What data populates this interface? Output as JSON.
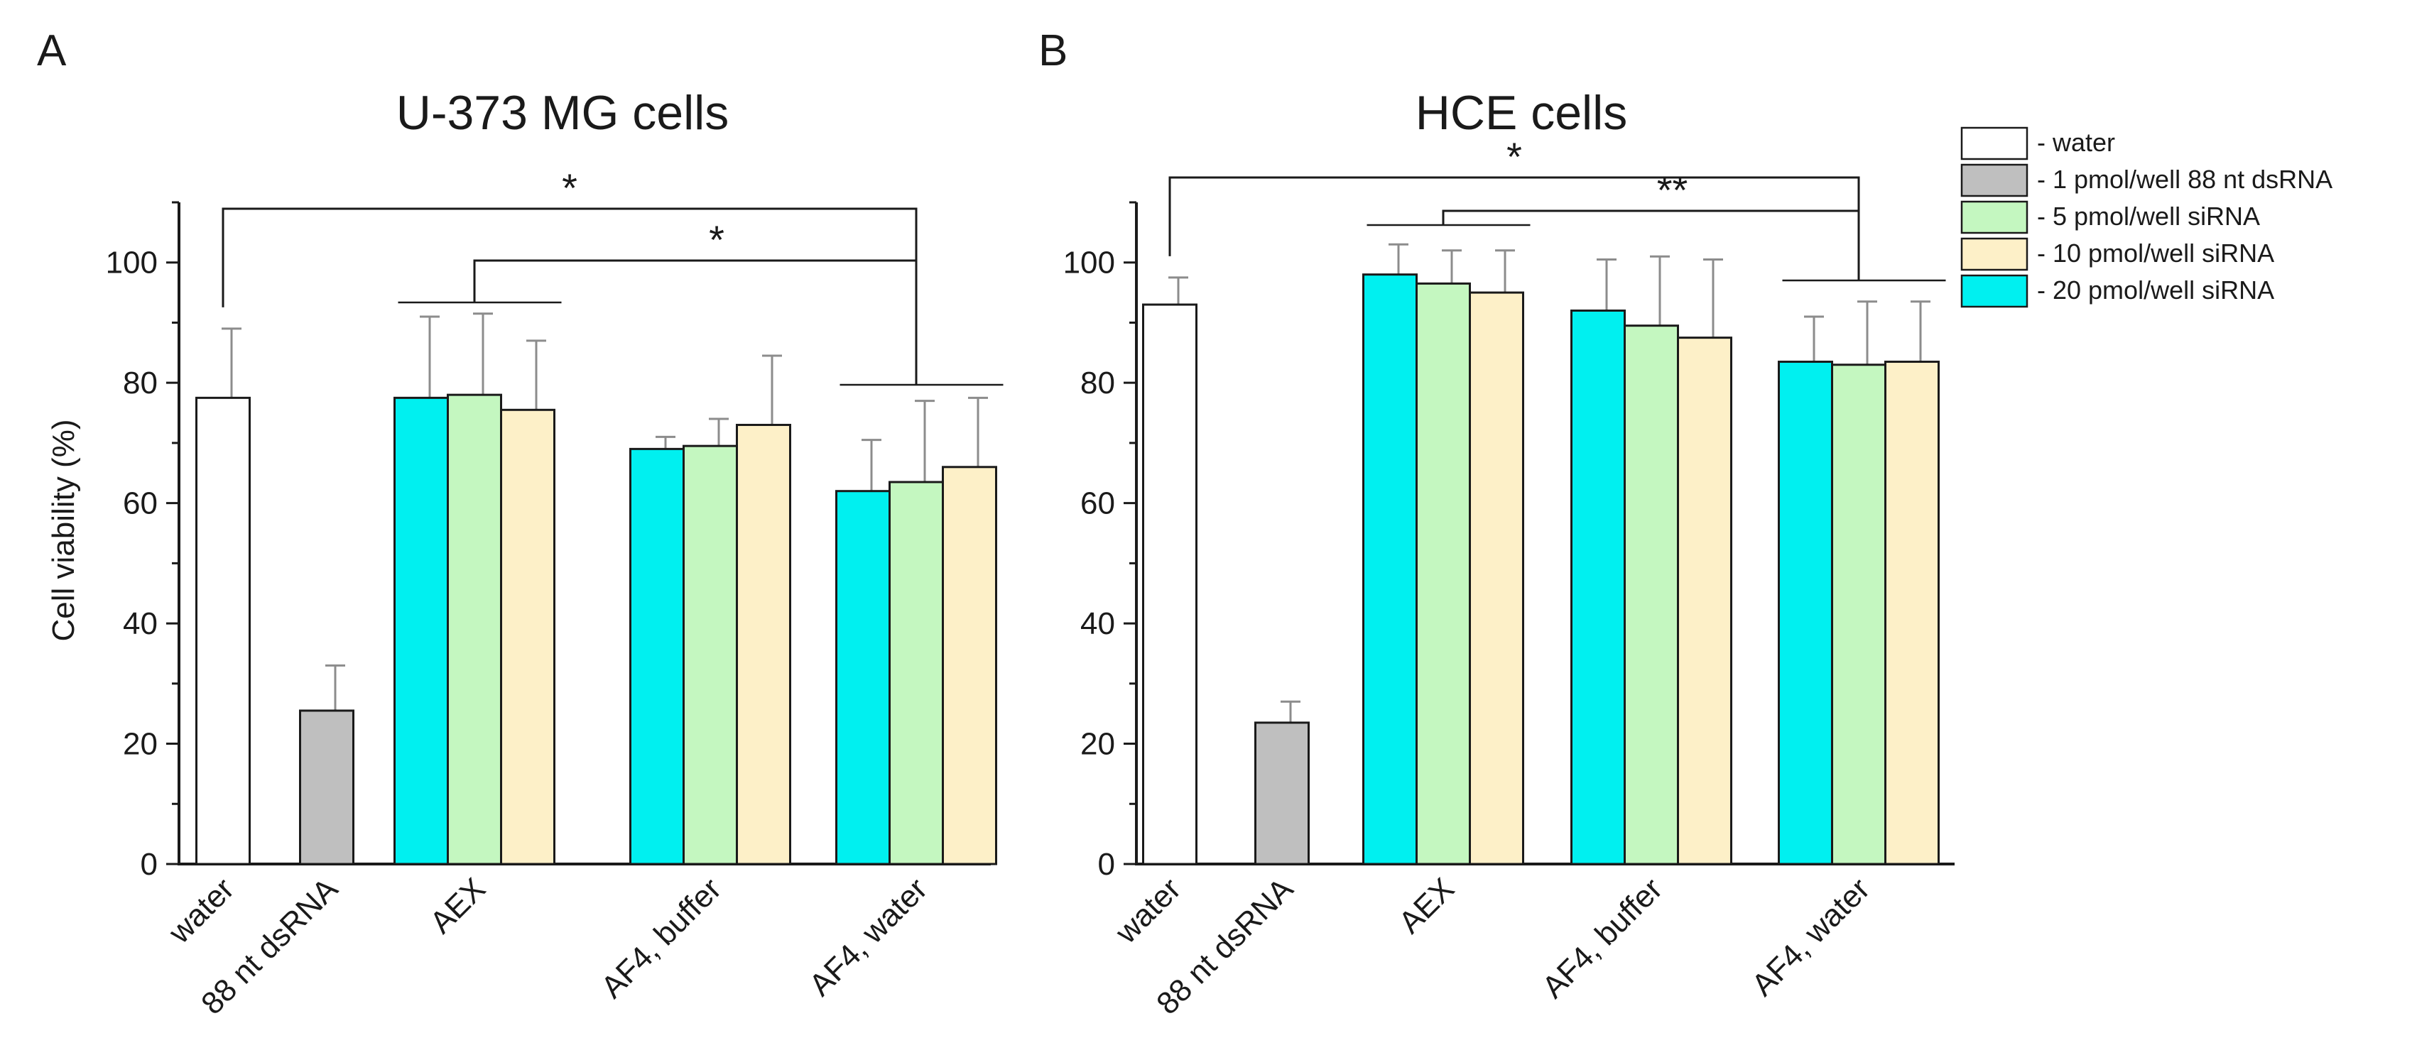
{
  "legend": [
    {
      "key": "water",
      "label": "- water",
      "color": "#ffffff"
    },
    {
      "key": "dsRNA",
      "label": "- 1 pmol/well 88 nt dsRNA",
      "color": "#bfbfbf"
    },
    {
      "key": "p5",
      "label": "- 5 pmol/well siRNA",
      "color": "#c4f7c0"
    },
    {
      "key": "p10",
      "label": "- 10 pmol/well siRNA",
      "color": "#fdf0c8"
    },
    {
      "key": "p20",
      "label": "- 20 pmol/well siRNA",
      "color": "#00f0f0"
    }
  ],
  "colors": {
    "axis": "#1a1a1a",
    "bar_stroke": "#1a1a1a",
    "error": "#8c8c8c",
    "bracket": "#1a1a1a"
  },
  "chart_data": [
    {
      "panel": "A",
      "type": "bar",
      "title": "U-373 MG cells",
      "xlabel": "",
      "ylabel": "Cell viability (%)",
      "ylim": [
        0,
        110
      ],
      "yticks": [
        0,
        20,
        40,
        60,
        80,
        100
      ],
      "categories": [
        "water",
        "88 nt dsRNA",
        "AEX",
        "AF4, buffer",
        "AF4, water"
      ],
      "groups": [
        {
          "category": "water",
          "bars": [
            {
              "series": "water",
              "value": 77.5,
              "error": 11.5
            }
          ]
        },
        {
          "category": "88 nt dsRNA",
          "bars": [
            {
              "series": "dsRNA",
              "value": 25.5,
              "error": 7.5
            }
          ]
        },
        {
          "category": "AEX",
          "bars": [
            {
              "series": "p20",
              "value": 77.5,
              "error": 13.5
            },
            {
              "series": "p5",
              "value": 78.0,
              "error": 13.5
            },
            {
              "series": "p10",
              "value": 75.5,
              "error": 11.5
            }
          ]
        },
        {
          "category": "AF4, buffer",
          "bars": [
            {
              "series": "p20",
              "value": 69.0,
              "error": 2.0
            },
            {
              "series": "p5",
              "value": 69.5,
              "error": 4.5
            },
            {
              "series": "p10",
              "value": 73.0,
              "error": 11.5
            }
          ]
        },
        {
          "category": "AF4, water",
          "bars": [
            {
              "series": "p20",
              "value": 62.0,
              "error": 8.5
            },
            {
              "series": "p5",
              "value": 63.5,
              "error": 13.5
            },
            {
              "series": "p10",
              "value": 66.0,
              "error": 11.5
            }
          ]
        }
      ],
      "significance": [
        {
          "label": "*",
          "from": "water",
          "to": "AF4, water"
        },
        {
          "label": "*",
          "from": "AEX",
          "to": "AF4, water"
        }
      ]
    },
    {
      "panel": "B",
      "type": "bar",
      "title": "HCE cells",
      "xlabel": "",
      "ylabel": "",
      "ylim": [
        0,
        110
      ],
      "yticks": [
        0,
        20,
        40,
        60,
        80,
        100
      ],
      "categories": [
        "water",
        "88 nt dsRNA",
        "AEX",
        "AF4, buffer",
        "AF4, water"
      ],
      "groups": [
        {
          "category": "water",
          "bars": [
            {
              "series": "water",
              "value": 93.0,
              "error": 4.5
            }
          ]
        },
        {
          "category": "88 nt dsRNA",
          "bars": [
            {
              "series": "dsRNA",
              "value": 23.5,
              "error": 3.5
            }
          ]
        },
        {
          "category": "AEX",
          "bars": [
            {
              "series": "p20",
              "value": 98.0,
              "error": 5.0
            },
            {
              "series": "p5",
              "value": 96.5,
              "error": 5.5
            },
            {
              "series": "p10",
              "value": 95.0,
              "error": 7.0
            }
          ]
        },
        {
          "category": "AF4, buffer",
          "bars": [
            {
              "series": "p20",
              "value": 92.0,
              "error": 8.5
            },
            {
              "series": "p5",
              "value": 89.5,
              "error": 11.5
            },
            {
              "series": "p10",
              "value": 87.5,
              "error": 13.0
            }
          ]
        },
        {
          "category": "AF4, water",
          "bars": [
            {
              "series": "p20",
              "value": 83.5,
              "error": 7.5
            },
            {
              "series": "p5",
              "value": 83.0,
              "error": 10.5
            },
            {
              "series": "p10",
              "value": 83.5,
              "error": 10.0
            }
          ]
        }
      ],
      "significance": [
        {
          "label": "*",
          "from": "water",
          "to": "AF4, water"
        },
        {
          "label": "**",
          "from": "AEX",
          "to": "AF4, water"
        }
      ]
    }
  ]
}
